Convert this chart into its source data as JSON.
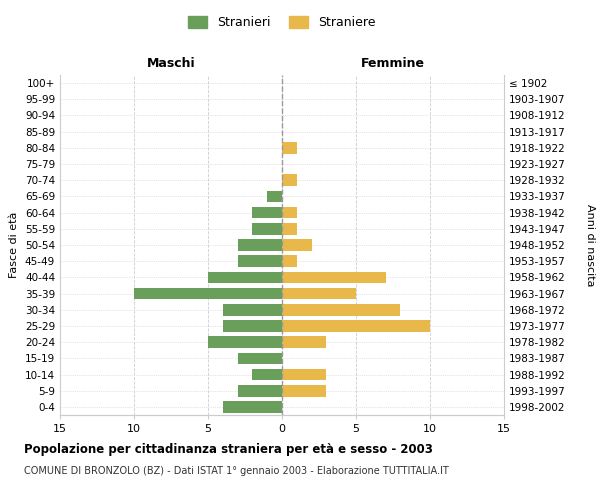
{
  "age_groups": [
    "0-4",
    "5-9",
    "10-14",
    "15-19",
    "20-24",
    "25-29",
    "30-34",
    "35-39",
    "40-44",
    "45-49",
    "50-54",
    "55-59",
    "60-64",
    "65-69",
    "70-74",
    "75-79",
    "80-84",
    "85-89",
    "90-94",
    "95-99",
    "100+"
  ],
  "birth_years": [
    "1998-2002",
    "1993-1997",
    "1988-1992",
    "1983-1987",
    "1978-1982",
    "1973-1977",
    "1968-1972",
    "1963-1967",
    "1958-1962",
    "1953-1957",
    "1948-1952",
    "1943-1947",
    "1938-1942",
    "1933-1937",
    "1928-1932",
    "1923-1927",
    "1918-1922",
    "1913-1917",
    "1908-1912",
    "1903-1907",
    "≤ 1902"
  ],
  "maschi": [
    4,
    3,
    2,
    3,
    5,
    4,
    4,
    10,
    5,
    3,
    3,
    2,
    2,
    1,
    0,
    0,
    0,
    0,
    0,
    0,
    0
  ],
  "femmine": [
    0,
    3,
    3,
    0,
    3,
    10,
    8,
    5,
    7,
    1,
    2,
    1,
    1,
    0,
    1,
    0,
    1,
    0,
    0,
    0,
    0
  ],
  "maschi_color": "#6a9e5b",
  "femmine_color": "#e8b84b",
  "title": "Popolazione per cittadinanza straniera per età e sesso - 2003",
  "subtitle": "COMUNE DI BRONZOLO (BZ) - Dati ISTAT 1° gennaio 2003 - Elaborazione TUTTITALIA.IT",
  "xlabel_left": "Maschi",
  "xlabel_right": "Femmine",
  "ylabel_left": "Fasce di età",
  "ylabel_right": "Anni di nascita",
  "legend_maschi": "Stranieri",
  "legend_femmine": "Straniere",
  "xlim": 15,
  "background_color": "#ffffff",
  "grid_color": "#cccccc"
}
